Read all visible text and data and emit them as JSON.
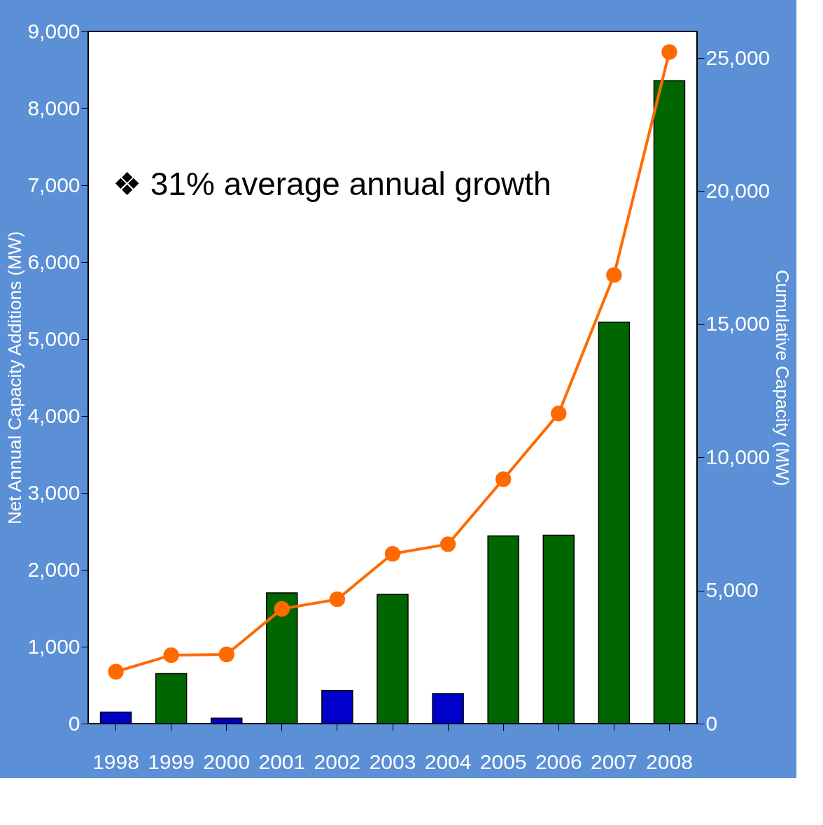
{
  "chart_data": {
    "type": "bar",
    "xlabel": null,
    "ylabel": "Net Annual Capacity Additions (MW)",
    "y2label": "Cumulative Capacity (MW)",
    "categories": [
      "1998",
      "1999",
      "2000",
      "2001",
      "2002",
      "2003",
      "2004",
      "2005",
      "2006",
      "2007",
      "2008"
    ],
    "series": [
      {
        "colors": [
          "#0000cc",
          "#006600",
          "#0000cc",
          "#006600",
          "#0000cc",
          "#006600",
          "#0000cc",
          "#006600",
          "#006600",
          "#006600",
          "#006600"
        ],
        "values": [
          150,
          650,
          70,
          1700,
          430,
          1680,
          390,
          2440,
          2450,
          5220,
          8360
        ]
      },
      {
        "type": "line",
        "axis": "y2",
        "color": "#ff6a00",
        "marker": "circle",
        "values": [
          1950,
          2570,
          2600,
          4310,
          4670,
          6380,
          6740,
          9180,
          11650,
          16850,
          25230
        ]
      }
    ],
    "ylim": [
      0,
      9000
    ],
    "yticks": [
      0,
      {
        "value": 1000,
        "label": "1,000"
      },
      {
        "value": 2000,
        "label": "2,000"
      },
      {
        "value": 3000,
        "label": "3,000"
      },
      {
        "value": 4000,
        "label": "4,000"
      },
      {
        "value": 5000,
        "label": "5,000"
      },
      {
        "value": 6000,
        "label": "6,000"
      },
      {
        "value": 7000,
        "label": "7,000"
      },
      {
        "value": 8000,
        "label": "8,000"
      },
      {
        "value": 9000,
        "label": "9,000"
      }
    ],
    "y2lim": [
      0,
      26000
    ],
    "y2ticks": [
      0,
      {
        "value": 5000,
        "label": "5,000"
      },
      {
        "value": 10000,
        "label": "10,000"
      },
      {
        "value": 15000,
        "label": "15,000"
      },
      {
        "value": 20000,
        "label": "20,000"
      },
      {
        "value": 25000,
        "label": "25,000"
      }
    ],
    "annotations": [
      "❖ 31% average annual growth"
    ],
    "grid": false
  }
}
